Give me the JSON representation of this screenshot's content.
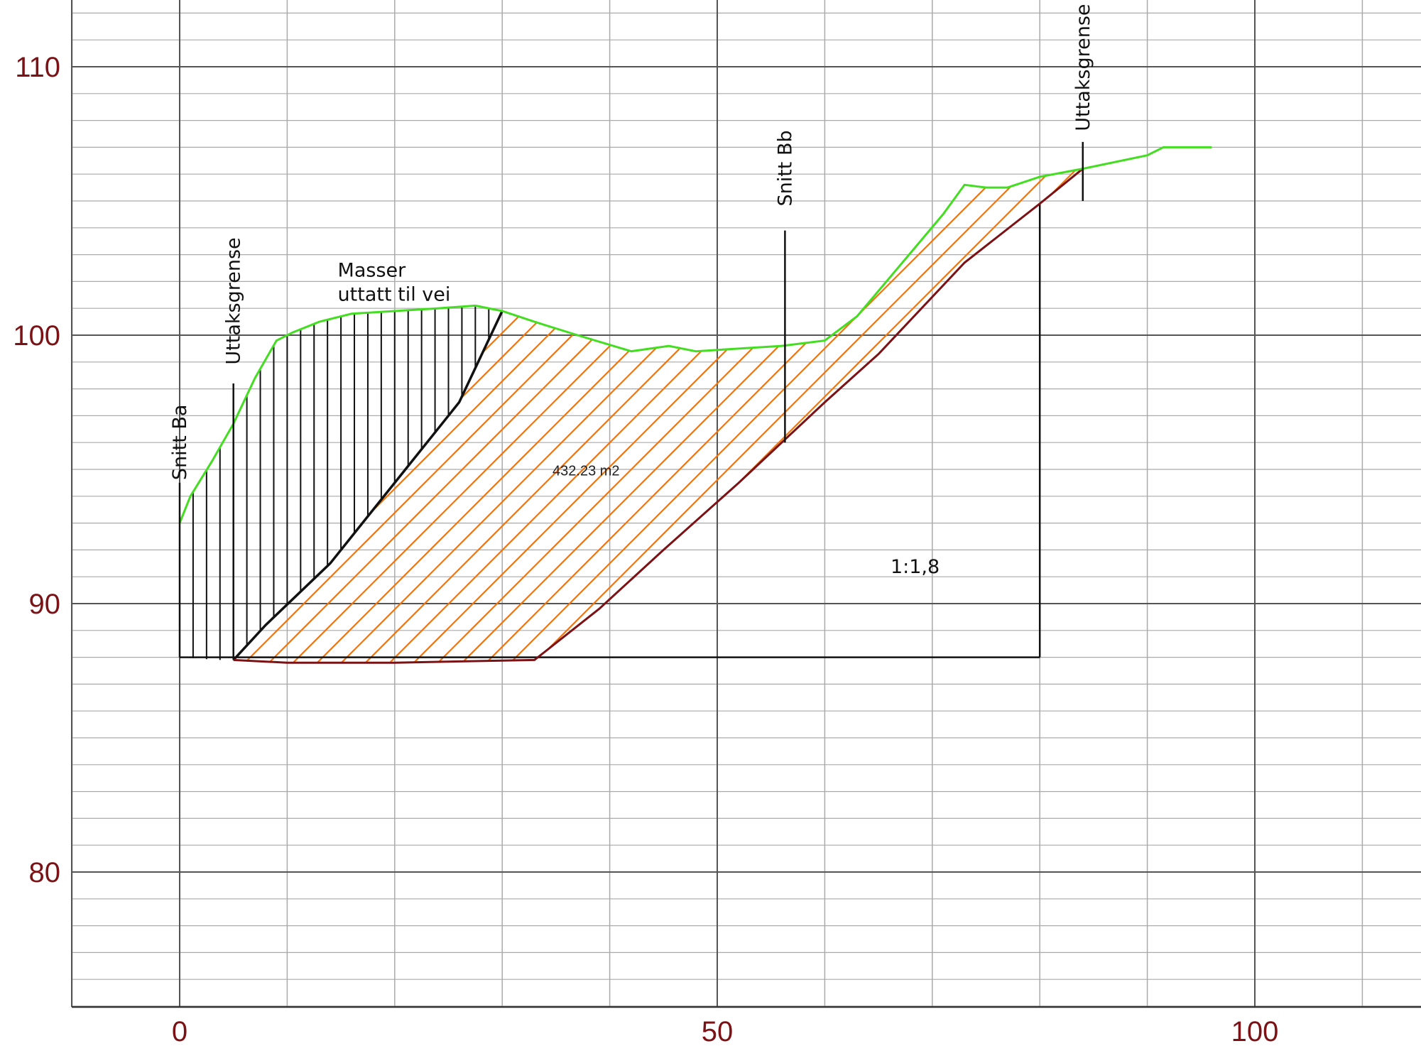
{
  "colors": {
    "background": "#ffffff",
    "major_grid": "#555555",
    "minor_grid": "#aaaaaa",
    "tick_label": "#7b1216",
    "terrain": "#44dd22",
    "cut_line": "#7b1216",
    "hatch_orange": "#e8761a",
    "black": "#111111"
  },
  "chart_data": {
    "type": "diagram",
    "x_ticks": [
      0,
      50,
      100
    ],
    "y_ticks": [
      80,
      90,
      100,
      110
    ],
    "xlim": [
      -10,
      116
    ],
    "ylim": [
      75,
      112.5
    ],
    "grid": {
      "x_minor_step": 10,
      "y_minor_step": 1,
      "x_major_step": 50,
      "y_major_step": 10
    },
    "terrain_profile": [
      [
        0,
        93
      ],
      [
        1,
        94
      ],
      [
        3,
        95.3
      ],
      [
        5,
        96.7
      ],
      [
        7,
        98.4
      ],
      [
        9,
        99.8
      ],
      [
        10.5,
        100.1
      ],
      [
        13,
        100.5
      ],
      [
        16,
        100.8
      ],
      [
        20,
        100.9
      ],
      [
        24,
        101
      ],
      [
        27.5,
        101.1
      ],
      [
        30,
        100.9
      ],
      [
        33,
        100.5
      ],
      [
        37,
        100
      ],
      [
        42,
        99.4
      ],
      [
        45.5,
        99.6
      ],
      [
        48,
        99.4
      ],
      [
        52,
        99.5
      ],
      [
        56,
        99.6
      ],
      [
        60,
        99.8
      ],
      [
        63,
        100.7
      ],
      [
        67,
        102.6
      ],
      [
        71,
        104.5
      ],
      [
        73,
        105.6
      ],
      [
        75,
        105.5
      ],
      [
        77,
        105.5
      ],
      [
        80,
        105.9
      ],
      [
        84,
        106.2
      ],
      [
        90,
        106.7
      ],
      [
        91.5,
        107
      ],
      [
        96,
        107
      ]
    ],
    "masser_polygon": [
      [
        0,
        93
      ],
      [
        1,
        94
      ],
      [
        3,
        95.3
      ],
      [
        5,
        96.7
      ],
      [
        7,
        98.4
      ],
      [
        9,
        99.8
      ],
      [
        10.5,
        100.1
      ],
      [
        13,
        100.5
      ],
      [
        16,
        100.8
      ],
      [
        20,
        100.9
      ],
      [
        24,
        101
      ],
      [
        27.5,
        101.1
      ],
      [
        30,
        100.9
      ],
      [
        26,
        97.5
      ],
      [
        20,
        94.5
      ],
      [
        14,
        91.5
      ],
      [
        8,
        89.2
      ],
      [
        5,
        87.9
      ],
      [
        3.5,
        87.9
      ],
      [
        0,
        88
      ]
    ],
    "excavation_polygon": [
      [
        5,
        87.9
      ],
      [
        8,
        89.2
      ],
      [
        14,
        91.5
      ],
      [
        20,
        94.5
      ],
      [
        26,
        97.5
      ],
      [
        30,
        100.9
      ],
      [
        33,
        100.5
      ],
      [
        37,
        100
      ],
      [
        42,
        99.4
      ],
      [
        45.5,
        99.6
      ],
      [
        48,
        99.4
      ],
      [
        52,
        99.5
      ],
      [
        56,
        99.6
      ],
      [
        60,
        99.8
      ],
      [
        63,
        100.7
      ],
      [
        67,
        102.6
      ],
      [
        71,
        104.5
      ],
      [
        73,
        105.6
      ],
      [
        75,
        105.5
      ],
      [
        77,
        105.5
      ],
      [
        80,
        105.9
      ],
      [
        84,
        106.2
      ],
      [
        80,
        104.9
      ],
      [
        73,
        102.7
      ],
      [
        65,
        99.3
      ],
      [
        60,
        97.5
      ],
      [
        56,
        96
      ],
      [
        52,
        94.5
      ],
      [
        45,
        92
      ],
      [
        39,
        89.8
      ],
      [
        33,
        87.9
      ],
      [
        10,
        87.8
      ]
    ],
    "cut_line": [
      [
        5,
        87.9
      ],
      [
        10,
        87.8
      ],
      [
        20,
        87.8
      ],
      [
        33,
        87.9
      ],
      [
        39,
        89.8
      ],
      [
        45,
        92
      ],
      [
        52,
        94.5
      ],
      [
        56,
        96
      ],
      [
        60,
        97.5
      ],
      [
        65,
        99.3
      ],
      [
        73,
        102.7
      ],
      [
        80,
        104.9
      ],
      [
        84,
        106.2
      ]
    ],
    "inner_cut_line": [
      [
        5,
        87.9
      ],
      [
        8,
        89.2
      ],
      [
        14,
        91.5
      ],
      [
        20,
        94.5
      ],
      [
        26,
        97.5
      ],
      [
        30,
        100.9
      ]
    ],
    "base_line": [
      [
        0,
        88
      ],
      [
        80,
        88
      ]
    ],
    "slope_vertical": [
      [
        80,
        88
      ],
      [
        80,
        104.9
      ]
    ],
    "markers": [
      {
        "label": "Snitt Ba",
        "x": 0
      },
      {
        "label": "Uttaksgrense",
        "x": 5
      },
      {
        "label": "Snitt Bb",
        "x": 56.3
      },
      {
        "label": "Uttaksgrense",
        "x": 84
      }
    ],
    "annotations": {
      "masser_line1": "Masser",
      "masser_line2": "uttatt til vei",
      "area": "432.23 m2",
      "slope": "1:1,8"
    }
  }
}
